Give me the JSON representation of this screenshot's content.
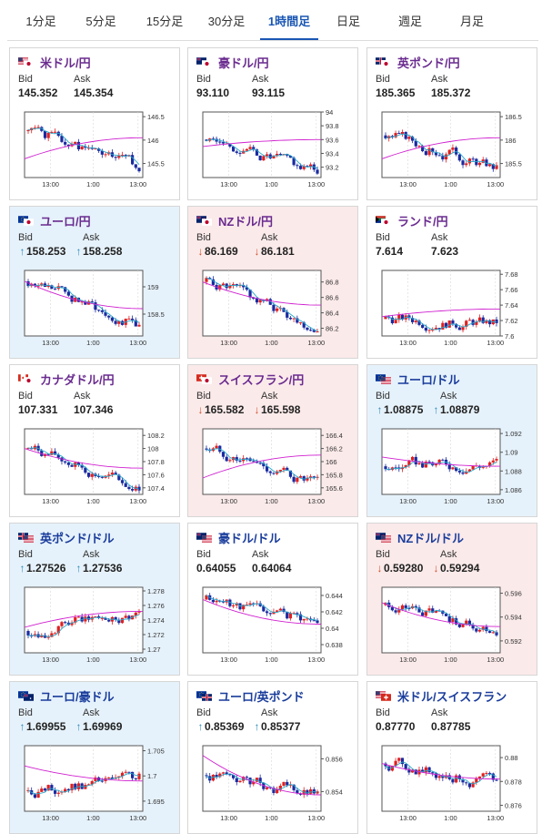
{
  "tabs": [
    {
      "label": "1分足",
      "active": false
    },
    {
      "label": "5分足",
      "active": false
    },
    {
      "label": "15分足",
      "active": false
    },
    {
      "label": "30分足",
      "active": false
    },
    {
      "label": "1時間足",
      "active": true
    },
    {
      "label": "日足",
      "active": false
    },
    {
      "label": "週足",
      "active": false
    },
    {
      "label": "月足",
      "active": false
    }
  ],
  "bid_label": "Bid",
  "ask_label": "Ask",
  "cards": [
    {
      "pair": "米ドル/円",
      "bg": "white",
      "arrow": "",
      "bid": "145.352",
      "ask": "145.354",
      "flags": [
        "us",
        "jp"
      ],
      "chart": {
        "yticks": [
          "146.5",
          "146",
          "145.5"
        ],
        "xticks": [
          "13:00",
          "1:00",
          "13:00"
        ],
        "ymin": 145.2,
        "ymax": 146.6,
        "ma_from": 145.6,
        "ma_to": 146.05,
        "start": 146.2,
        "end": 145.35,
        "seed": 1
      }
    },
    {
      "pair": "豪ドル/円",
      "bg": "white",
      "arrow": "",
      "bid": "93.110",
      "ask": "93.115",
      "flags": [
        "au",
        "jp"
      ],
      "chart": {
        "yticks": [
          "94",
          "93.8",
          "93.6",
          "93.4",
          "93.2"
        ],
        "xticks": [
          "13:00",
          "1:00",
          "13:00"
        ],
        "ymin": 93.05,
        "ymax": 94.0,
        "ma_from": 93.5,
        "ma_to": 93.6,
        "start": 93.6,
        "end": 93.11,
        "seed": 2
      }
    },
    {
      "pair": "英ポンド/円",
      "bg": "white",
      "arrow": "",
      "bid": "185.365",
      "ask": "185.372",
      "flags": [
        "gb",
        "jp"
      ],
      "chart": {
        "yticks": [
          "186.5",
          "186",
          "185.5"
        ],
        "xticks": [
          "13:00",
          "1:00",
          "13:00"
        ],
        "ymin": 185.2,
        "ymax": 186.6,
        "ma_from": 185.6,
        "ma_to": 186.05,
        "start": 186.1,
        "end": 185.37,
        "seed": 3
      }
    },
    {
      "pair": "ユーロ/円",
      "bg": "blue",
      "arrow": "up",
      "bid": "158.253",
      "ask": "158.258",
      "flags": [
        "eu",
        "jp"
      ],
      "chart": {
        "yticks": [
          "159",
          "158.5"
        ],
        "xticks": [
          "13:00",
          "1:00",
          "13:00"
        ],
        "ymin": 158.1,
        "ymax": 159.3,
        "ma_from": 159.1,
        "ma_to": 158.6,
        "start": 159.1,
        "end": 158.25,
        "seed": 4
      }
    },
    {
      "pair": "NZドル/円",
      "bg": "pink",
      "arrow": "down",
      "bid": "86.169",
      "ask": "86.181",
      "flags": [
        "nz",
        "jp"
      ],
      "chart": {
        "yticks": [
          "86.8",
          "86.6",
          "86.4",
          "86.2"
        ],
        "xticks": [
          "13:00",
          "1:00",
          "13:00"
        ],
        "ymin": 86.1,
        "ymax": 86.95,
        "ma_from": 86.8,
        "ma_to": 86.5,
        "start": 86.8,
        "end": 86.17,
        "seed": 5
      }
    },
    {
      "pair": "ランド/円",
      "bg": "white",
      "arrow": "",
      "bid": "7.614",
      "ask": "7.623",
      "flags": [
        "za",
        "jp"
      ],
      "chart": {
        "yticks": [
          "7.68",
          "7.66",
          "7.64",
          "7.62",
          "7.6"
        ],
        "xticks": [
          "13:00",
          "1:00",
          "13:00"
        ],
        "ymin": 7.6,
        "ymax": 7.685,
        "ma_from": 7.625,
        "ma_to": 7.635,
        "start": 7.622,
        "end": 7.615,
        "seed": 6
      }
    },
    {
      "pair": "カナダドル/円",
      "bg": "white",
      "arrow": "",
      "bid": "107.331",
      "ask": "107.346",
      "flags": [
        "ca",
        "jp"
      ],
      "chart": {
        "yticks": [
          "108.2",
          "108",
          "107.8",
          "107.6",
          "107.4"
        ],
        "xticks": [
          "13:00",
          "1:00",
          "13:00"
        ],
        "ymin": 107.3,
        "ymax": 108.3,
        "ma_from": 108.0,
        "ma_to": 107.7,
        "start": 108.0,
        "end": 107.33,
        "seed": 7
      }
    },
    {
      "pair": "スイスフラン/円",
      "bg": "pink",
      "arrow": "down",
      "bid": "165.582",
      "ask": "165.598",
      "flags": [
        "ch",
        "jp"
      ],
      "chart": {
        "yticks": [
          "166.4",
          "166.2",
          "166",
          "165.8",
          "165.6"
        ],
        "xticks": [
          "13:00",
          "1:00",
          "13:00"
        ],
        "ymin": 165.5,
        "ymax": 166.5,
        "ma_from": 165.75,
        "ma_to": 166.1,
        "start": 166.2,
        "end": 165.58,
        "seed": 8
      }
    },
    {
      "pair": "ユーロ/ドル",
      "bg": "blue",
      "arrow": "up",
      "bid": "1.08875",
      "ask": "1.08879",
      "flags": [
        "eu",
        "us"
      ],
      "chart": {
        "yticks": [
          "1.092",
          "1.09",
          "1.088",
          "1.086"
        ],
        "xticks": [
          "13:00",
          "1:00",
          "13:00"
        ],
        "ymin": 1.0855,
        "ymax": 1.0925,
        "ma_from": 1.0895,
        "ma_to": 1.0885,
        "start": 1.0885,
        "end": 1.0888,
        "seed": 9
      }
    },
    {
      "pair": "英ポンド/ドル",
      "bg": "blue",
      "arrow": "up",
      "bid": "1.27526",
      "ask": "1.27536",
      "flags": [
        "gb",
        "us"
      ],
      "chart": {
        "yticks": [
          "1.278",
          "1.276",
          "1.274",
          "1.272",
          "1.27"
        ],
        "xticks": [
          "13:00",
          "1:00",
          "13:00"
        ],
        "ymin": 1.2695,
        "ymax": 1.2785,
        "ma_from": 1.273,
        "ma_to": 1.2752,
        "start": 1.2725,
        "end": 1.2753,
        "seed": 10
      }
    },
    {
      "pair": "豪ドル/ドル",
      "bg": "white",
      "arrow": "",
      "bid": "0.64055",
      "ask": "0.64064",
      "flags": [
        "au",
        "us"
      ],
      "chart": {
        "yticks": [
          "0.644",
          "0.642",
          "0.64",
          "0.638"
        ],
        "xticks": [
          "13:00",
          "1:00",
          "13:00"
        ],
        "ymin": 0.637,
        "ymax": 0.645,
        "ma_from": 0.6435,
        "ma_to": 0.6405,
        "start": 0.6435,
        "end": 0.6406,
        "seed": 11
      }
    },
    {
      "pair": "NZドル/ドル",
      "bg": "pink",
      "arrow": "down",
      "bid": "0.59280",
      "ask": "0.59294",
      "flags": [
        "nz",
        "us"
      ],
      "chart": {
        "yticks": [
          "0.596",
          "0.594",
          "0.592"
        ],
        "xticks": [
          "13:00",
          "1:00",
          "13:00"
        ],
        "ymin": 0.591,
        "ymax": 0.5965,
        "ma_from": 0.5952,
        "ma_to": 0.5932,
        "start": 0.595,
        "end": 0.5928,
        "seed": 12
      }
    },
    {
      "pair": "ユーロ/豪ドル",
      "bg": "blue",
      "arrow": "up",
      "bid": "1.69955",
      "ask": "1.69969",
      "flags": [
        "eu",
        "au"
      ],
      "chart": {
        "yticks": [
          "1.705",
          "1.7",
          "1.695"
        ],
        "xticks": [
          "13:00",
          "1:00",
          "13:00"
        ],
        "ymin": 1.693,
        "ymax": 1.706,
        "ma_from": 1.702,
        "ma_to": 1.699,
        "start": 1.697,
        "end": 1.6996,
        "seed": 13
      }
    },
    {
      "pair": "ユーロ/英ポンド",
      "bg": "white",
      "arrow": "up",
      "bid": "0.85369",
      "ask": "0.85377",
      "flags": [
        "eu",
        "gb"
      ],
      "chart": {
        "yticks": [
          "0.856",
          "0.854"
        ],
        "xticks": [
          "13:00",
          "1:00",
          "13:00"
        ],
        "ymin": 0.8528,
        "ymax": 0.8568,
        "ma_from": 0.8562,
        "ma_to": 0.8538,
        "start": 0.855,
        "end": 0.8537,
        "seed": 14
      }
    },
    {
      "pair": "米ドル/スイスフラン",
      "bg": "white",
      "arrow": "",
      "bid": "0.87770",
      "ask": "0.87785",
      "flags": [
        "us",
        "ch"
      ],
      "chart": {
        "yticks": [
          "0.88",
          "0.878",
          "0.876"
        ],
        "xticks": [
          "13:00",
          "1:00",
          "13:00"
        ],
        "ymin": 0.8755,
        "ymax": 0.881,
        "ma_from": 0.8795,
        "ma_to": 0.8782,
        "start": 0.8795,
        "end": 0.8777,
        "seed": 15
      }
    }
  ]
}
